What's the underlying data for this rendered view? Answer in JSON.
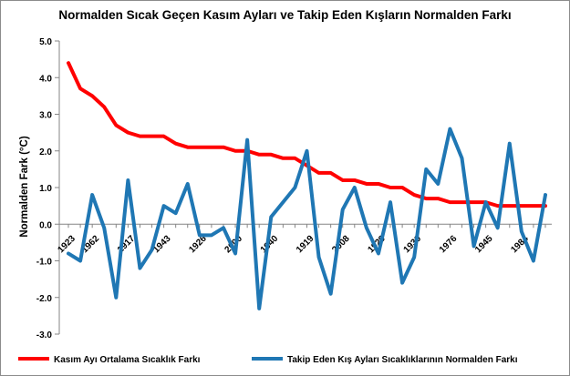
{
  "chart_data": {
    "type": "line",
    "title": "Normalden Sıcak Geçen Kasım Ayları ve Takip Eden Kışların Normalden Farkı",
    "xlabel": "",
    "ylabel": "Normalden Fark (°C)",
    "ylim": [
      -3.0,
      5.0
    ],
    "yticks": [
      "5.0",
      "4.0",
      "3.0",
      "2.0",
      "1.0",
      "0.0",
      "-1.0",
      "-2.0",
      "-3.0"
    ],
    "ytick_values": [
      5,
      4,
      3,
      2,
      1,
      0,
      -1,
      -2,
      -3
    ],
    "grid": false,
    "legend_position": "bottom",
    "x_tick_labels": [
      {
        "index": 0,
        "label": "1923"
      },
      {
        "index": 2,
        "label": "1962"
      },
      {
        "index": 5,
        "label": "1917"
      },
      {
        "index": 8,
        "label": "1943"
      },
      {
        "index": 11,
        "label": "1926"
      },
      {
        "index": 14,
        "label": "2000"
      },
      {
        "index": 17,
        "label": "1940"
      },
      {
        "index": 20,
        "label": "1919"
      },
      {
        "index": 23,
        "label": "2008"
      },
      {
        "index": 26,
        "label": "1929"
      },
      {
        "index": 29,
        "label": "1930"
      },
      {
        "index": 32,
        "label": "1976"
      },
      {
        "index": 35,
        "label": "1945"
      },
      {
        "index": 38,
        "label": "1984"
      }
    ],
    "series": [
      {
        "name": "Kasım Ayı Ortalama Sıcaklık Farkı",
        "color": "#ff0000",
        "values": [
          4.4,
          3.7,
          3.5,
          3.2,
          2.7,
          2.5,
          2.4,
          2.4,
          2.4,
          2.2,
          2.1,
          2.1,
          2.1,
          2.1,
          2.0,
          2.0,
          1.9,
          1.9,
          1.8,
          1.8,
          1.6,
          1.4,
          1.4,
          1.2,
          1.2,
          1.1,
          1.1,
          1.0,
          1.0,
          0.8,
          0.7,
          0.7,
          0.6,
          0.6,
          0.6,
          0.6,
          0.5,
          0.5,
          0.5,
          0.5,
          0.5
        ]
      },
      {
        "name": "Takip Eden Kış Ayları Sıcaklıklarının Normalden Farkı",
        "color": "#1f77b4",
        "values": [
          -0.8,
          -1.0,
          0.8,
          -0.1,
          -2.0,
          1.2,
          -1.2,
          -0.7,
          0.5,
          0.3,
          1.1,
          -0.3,
          -0.3,
          -0.1,
          -0.8,
          2.3,
          -2.3,
          0.2,
          0.6,
          1.0,
          2.0,
          -0.9,
          -1.9,
          0.4,
          1.0,
          -0.1,
          -0.8,
          0.6,
          -1.6,
          -0.9,
          1.5,
          1.1,
          2.6,
          1.8,
          -0.6,
          0.6,
          -0.1,
          2.2,
          -0.2,
          -1.0,
          0.8
        ]
      }
    ]
  }
}
